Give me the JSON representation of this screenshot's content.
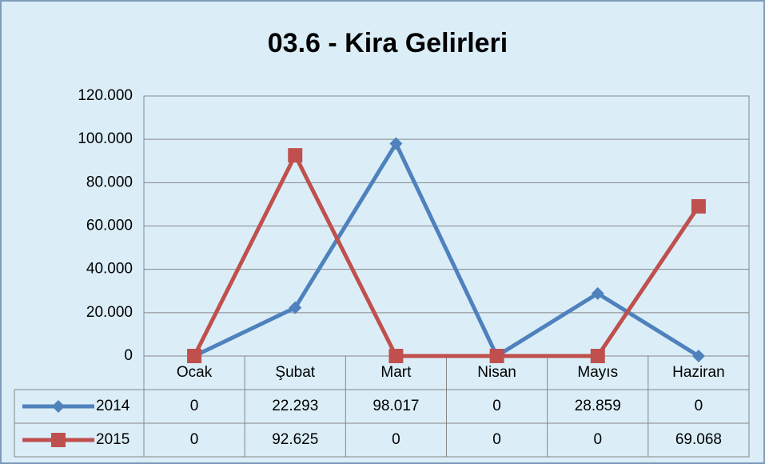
{
  "chart_data": {
    "type": "line",
    "title": "03.6 - Kira Gelirleri",
    "categories": [
      "Ocak",
      "Şubat",
      "Mart",
      "Nisan",
      "Mayıs",
      "Haziran"
    ],
    "series": [
      {
        "name": "2014",
        "color": "#4f81bd",
        "marker": "diamond",
        "values": [
          0,
          22293,
          98017,
          0,
          28859,
          0
        ],
        "value_labels": [
          "0",
          "22.293",
          "98.017",
          "0",
          "28.859",
          "0"
        ]
      },
      {
        "name": "2015",
        "color": "#c0504d",
        "marker": "square",
        "values": [
          0,
          92625,
          0,
          0,
          0,
          69068
        ],
        "value_labels": [
          "0",
          "92.625",
          "0",
          "0",
          "0",
          "69.068"
        ]
      }
    ],
    "ylim": [
      0,
      120000
    ],
    "yticks": [
      0,
      {
        "value": 20000,
        "label": "20.000"
      },
      {
        "value": 40000,
        "label": "40.000"
      },
      {
        "value": 60000,
        "label": "60.000"
      },
      {
        "value": 80000,
        "label": "80.000"
      },
      {
        "value": 100000,
        "label": "100.000"
      },
      {
        "value": 120000,
        "label": "120.000"
      }
    ],
    "grid": true,
    "data_table": true
  }
}
